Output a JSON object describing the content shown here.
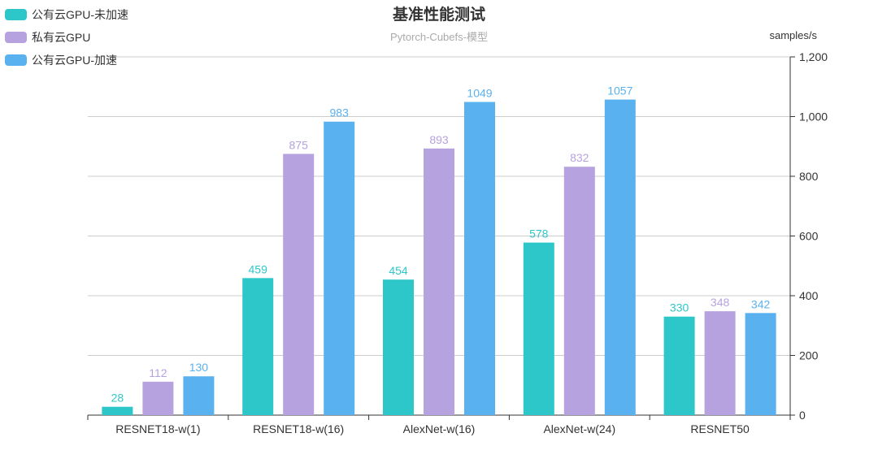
{
  "title": "基准性能测试",
  "subtitle": "Pytorch-Cubefs-模型",
  "y_unit": "samples/s",
  "legend": [
    {
      "label": "公有云GPU-未加速",
      "color": "#2ec7c9"
    },
    {
      "label": "私有云GPU",
      "color": "#b6a2de"
    },
    {
      "label": "公有云GPU-加速",
      "color": "#5ab1ef"
    }
  ],
  "chart_data": {
    "type": "bar",
    "title": "基准性能测试",
    "subtitle": "Pytorch-Cubefs-模型",
    "ylabel": "samples/s",
    "categories": [
      "RESNET18-w(1)",
      "RESNET18-w(16)",
      "AlexNet-w(16)",
      "AlexNet-w(24)",
      "RESNET50"
    ],
    "series": [
      {
        "name": "公有云GPU-未加速",
        "color": "#2ec7c9",
        "values": [
          28,
          459,
          454,
          578,
          330
        ]
      },
      {
        "name": "私有云GPU",
        "color": "#b6a2de",
        "values": [
          112,
          875,
          893,
          832,
          348
        ]
      },
      {
        "name": "公有云GPU-加速",
        "color": "#5ab1ef",
        "values": [
          130,
          983,
          1049,
          1057,
          342
        ]
      }
    ],
    "ylim": [
      0,
      1200
    ],
    "yticks": [
      0,
      200,
      400,
      600,
      800,
      1000,
      1200
    ],
    "ytick_labels": [
      "0",
      "200",
      "400",
      "600",
      "800",
      "1,000",
      "1,200"
    ],
    "y_axis_side": "right",
    "grid": true,
    "legend_position": "top-left"
  }
}
